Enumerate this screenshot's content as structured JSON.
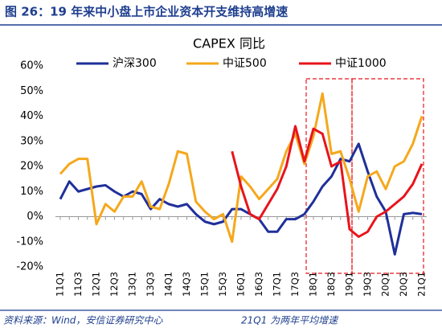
{
  "header": {
    "title": "图 26：19 年来中小盘上市企业资本开支维持高增速"
  },
  "footer": {
    "source": "资料来源：Wind，安信证券研究中心",
    "note": "21Q1 为两年平均增速"
  },
  "chart_data": {
    "type": "line",
    "title": "CAPEX 同比",
    "categories": [
      "11Q1",
      null,
      "11Q3",
      null,
      "12Q1",
      null,
      "12Q3",
      null,
      "13Q1",
      null,
      "13Q3",
      null,
      "14Q1",
      null,
      "14Q3",
      null,
      "15Q1",
      null,
      "15Q3",
      null,
      "16Q1",
      null,
      "16Q3",
      null,
      "17Q1",
      null,
      "17Q3",
      null,
      "18Q1",
      null,
      "18Q3",
      null,
      "19Q1",
      null,
      "19Q3",
      null,
      "20Q1",
      null,
      "20Q3",
      null,
      "21Q1"
    ],
    "series": [
      {
        "name": "沪深300",
        "color": "#1f2f9a",
        "values": [
          7,
          14,
          10,
          11,
          12,
          12.5,
          10,
          8,
          10,
          9,
          3,
          7,
          5,
          4,
          5,
          1,
          -2,
          -3,
          -2,
          3,
          3,
          1,
          -1,
          -6,
          -6,
          -1,
          -1,
          1,
          6,
          12,
          16,
          23,
          22,
          29,
          18,
          8,
          2,
          -15,
          1,
          1.5,
          1
        ]
      },
      {
        "name": "中证500",
        "color": "#f5a81c",
        "values": [
          17,
          21,
          23,
          23,
          -3,
          5,
          2,
          8,
          8,
          14,
          4,
          3,
          13,
          26,
          25,
          6,
          2,
          -1,
          1,
          -10,
          16,
          12,
          7,
          11,
          15,
          26,
          33,
          21,
          32,
          49,
          25,
          26,
          15,
          2,
          16,
          18,
          11,
          20,
          22,
          29,
          40
        ]
      },
      {
        "name": "中证1000",
        "color": "#e8141b",
        "values": [
          null,
          null,
          null,
          null,
          null,
          null,
          null,
          null,
          null,
          null,
          null,
          null,
          null,
          null,
          null,
          null,
          null,
          null,
          null,
          26,
          12,
          1,
          -1,
          5,
          11,
          20,
          36,
          22,
          35,
          33,
          20,
          22,
          -5,
          -8,
          -6,
          0,
          2,
          5,
          8,
          13,
          21
        ]
      }
    ],
    "ylim": [
      -20,
      60
    ],
    "yticks": [
      {
        "value": -20,
        "label": "-20%"
      },
      {
        "value": -10,
        "label": "-10%"
      },
      {
        "value": 0,
        "label": "0%"
      },
      {
        "value": 10,
        "label": "10%"
      },
      {
        "value": 20,
        "label": "20%"
      },
      {
        "value": 30,
        "label": "30%"
      },
      {
        "value": 40,
        "label": "40%"
      },
      {
        "value": 50,
        "label": "50%"
      },
      {
        "value": 60,
        "label": "60%"
      }
    ],
    "grid": false
  }
}
